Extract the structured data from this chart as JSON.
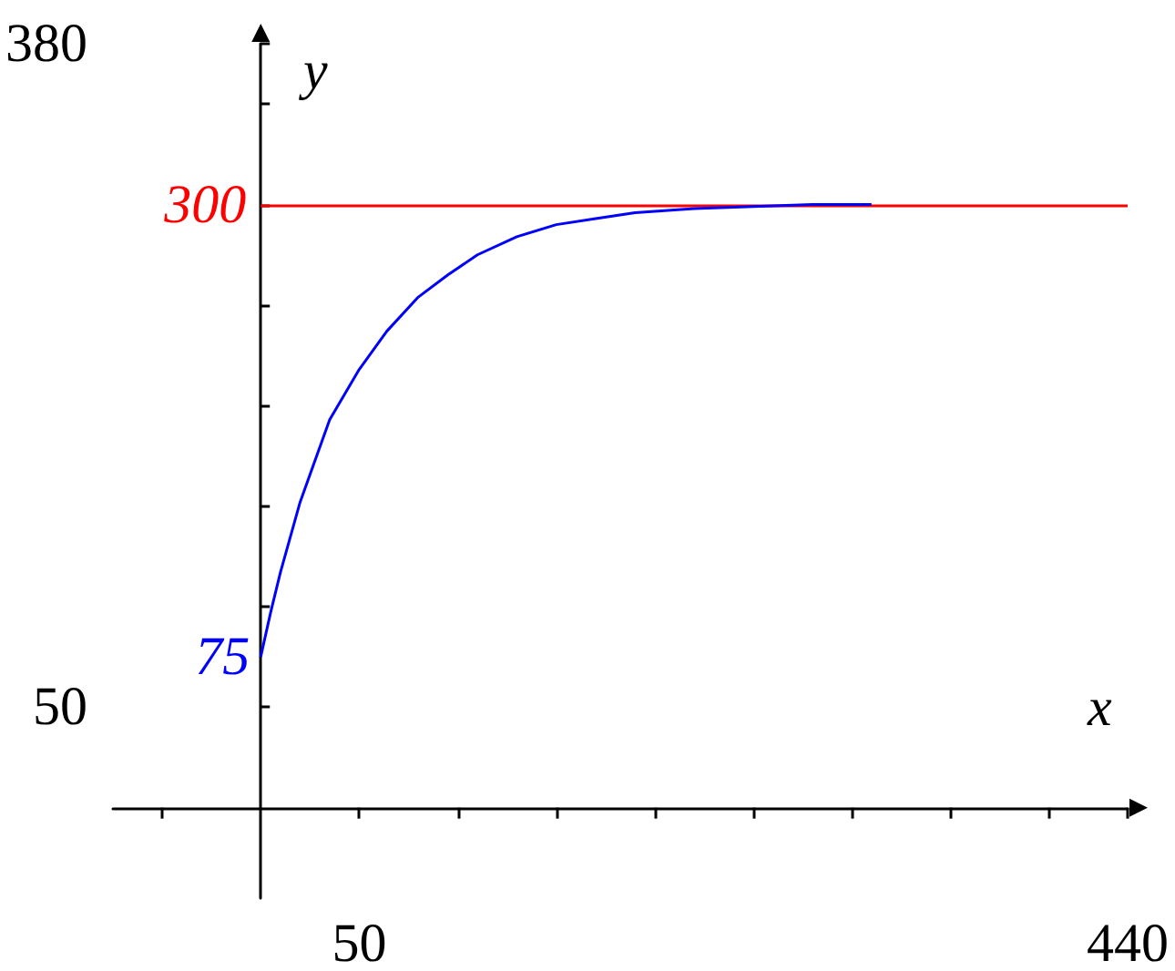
{
  "chart_data": {
    "type": "line",
    "xlabel": "x",
    "ylabel": "y",
    "xlim": [
      -75,
      440
    ],
    "ylim": [
      -45,
      380
    ],
    "xticks": [
      {
        "value": -50,
        "label": null
      },
      {
        "value": 50,
        "label": "50"
      },
      {
        "value": 100,
        "label": null
      },
      {
        "value": 150,
        "label": null
      },
      {
        "value": 200,
        "label": null
      },
      {
        "value": 250,
        "label": null
      },
      {
        "value": 300,
        "label": null
      },
      {
        "value": 350,
        "label": null
      },
      {
        "value": 400,
        "label": null
      },
      {
        "value": 440,
        "label": "440"
      }
    ],
    "yticks": [
      {
        "value": 50,
        "label": "50"
      },
      {
        "value": 100,
        "label": null
      },
      {
        "value": 150,
        "label": null
      },
      {
        "value": 200,
        "label": null
      },
      {
        "value": 250,
        "label": null
      },
      {
        "value": 300,
        "label": null
      },
      {
        "value": 350,
        "label": null
      },
      {
        "value": 380,
        "label": "380"
      }
    ],
    "series": [
      {
        "color": "#0000ff",
        "x": [
          0,
          5,
          10,
          20,
          35,
          50,
          64,
          80,
          95,
          110,
          130,
          150,
          170,
          190,
          220,
          250,
          280,
          310
        ],
        "values": [
          75,
          97,
          117,
          152,
          193,
          218,
          237,
          254,
          265,
          275,
          284,
          290,
          293,
          296,
          298,
          299,
          300,
          300
        ]
      }
    ],
    "ref_lines": [
      {
        "axis": "y",
        "value": 300,
        "label": "300",
        "color": "#ff0000"
      }
    ],
    "annotations": [
      {
        "text": "75",
        "x": 0,
        "y": 75
      }
    ],
    "grid": false,
    "marker": "none",
    "line_style": "solid"
  }
}
